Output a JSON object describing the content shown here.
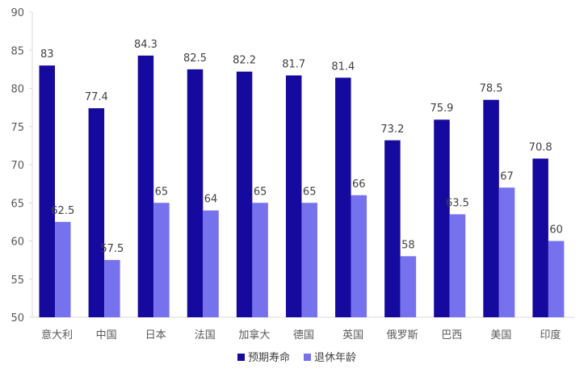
{
  "chart_data": {
    "type": "bar",
    "title": "",
    "xlabel": "",
    "ylabel": "",
    "ylim": [
      50,
      90
    ],
    "yticks": [
      50,
      55,
      60,
      65,
      70,
      75,
      80,
      85,
      90
    ],
    "grid": false,
    "legend_position": "bottom",
    "categories": [
      "意大利",
      "中国",
      "日本",
      "法国",
      "加拿大",
      "德国",
      "英国",
      "俄罗斯",
      "巴西",
      "美国",
      "印度"
    ],
    "series": [
      {
        "name": "预期寿命",
        "color": "#16099e",
        "values": [
          83,
          77.4,
          84.3,
          82.5,
          82.2,
          81.7,
          81.4,
          73.2,
          75.9,
          78.5,
          70.8
        ],
        "labels": [
          "83",
          "77.4",
          "84.3",
          "82.5",
          "82.2",
          "81.7",
          "81.4",
          "73.2",
          "75.9",
          "78.5",
          "70.8"
        ]
      },
      {
        "name": "退休年龄",
        "color": "#7672ee",
        "values": [
          62.5,
          57.5,
          65,
          64,
          65,
          65,
          66,
          58,
          63.5,
          67,
          60
        ],
        "labels": [
          "62.5",
          "57.5",
          "65",
          "64",
          "65",
          "65",
          "66",
          "58",
          "63.5",
          "67",
          "60"
        ]
      }
    ]
  }
}
